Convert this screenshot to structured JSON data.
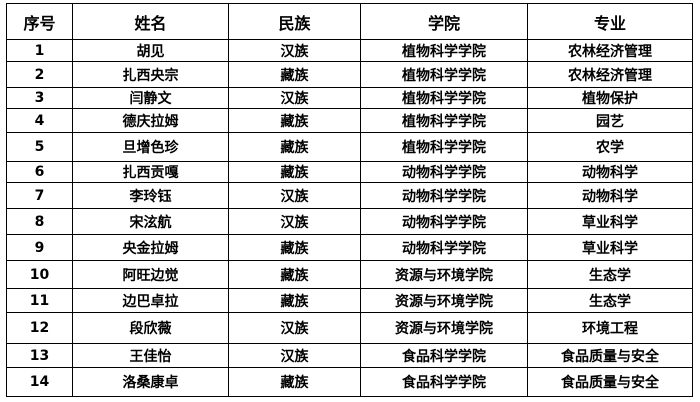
{
  "headers": [
    "序号",
    "姓名",
    "民族",
    "学院",
    "专业"
  ],
  "rows": [
    [
      "1",
      "胡见",
      "汉族",
      "植物科学学院",
      "农林经济管理"
    ],
    [
      "2",
      "扎西央宗",
      "藏族",
      "植物科学学院",
      "农林经济管理"
    ],
    [
      "3",
      "闫静文",
      "汉族",
      "植物科学学院",
      "植物保护"
    ],
    [
      "4",
      "德庆拉姆",
      "藏族",
      "植物科学学院",
      "园艺"
    ],
    [
      "5",
      "旦增色珍",
      "藏族",
      "植物科学学院",
      "农学"
    ],
    [
      "6",
      "扎西贡嘎",
      "藏族",
      "动物科学学院",
      "动物科学"
    ],
    [
      "7",
      "李玲钰",
      "汉族",
      "动物科学学院",
      "动物科学"
    ],
    [
      "8",
      "宋泫航",
      "汉族",
      "动物科学学院",
      "草业科学"
    ],
    [
      "9",
      "央金拉姆",
      "藏族",
      "动物科学学院",
      "草业科学"
    ],
    [
      "10",
      "阿旺边觉",
      "藏族",
      "资源与环境学院",
      "生态学"
    ],
    [
      "11",
      "边巴卓拉",
      "藏族",
      "资源与环境学院",
      "生态学"
    ],
    [
      "12",
      "段欣薇",
      "汉族",
      "资源与环境学院",
      "环境工程"
    ],
    [
      "13",
      "王佳怡",
      "汉族",
      "食品科学学院",
      "食品质量与安全"
    ],
    [
      "14",
      "洛桑康卓",
      "藏族",
      "食品科学学院",
      "食品质量与安全"
    ]
  ]
}
